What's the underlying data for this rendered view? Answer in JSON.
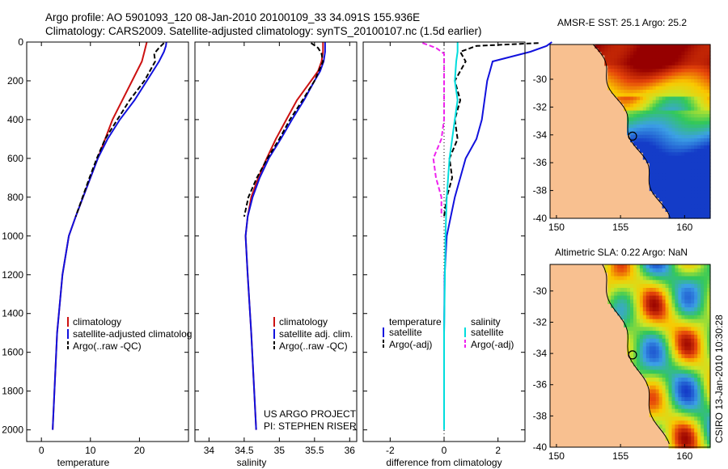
{
  "figure": {
    "title_line1": "Argo profile: AO 5901093_120 08-Jan-2010 20100109_33 34.091S 155.936E",
    "title_line2": "Climatology: CARS2009. Satellite-adjusted climatology: synTS_20100107.nc (1.5d earlier)",
    "credit_line1": "US ARGO PROJECT",
    "credit_line2": "PI: STEPHEN RISER",
    "stamp": "CSIRO 13-Jan-2010 10:30:28"
  },
  "colors": {
    "climatology": "#cc1111",
    "satellite": "#1111dd",
    "argo": "#000000",
    "salinity_sat": "#00dddd",
    "salinity_argo": "#ee22ee",
    "land": "#f8c090"
  },
  "chart_data": [
    {
      "type": "line",
      "id": "temperature",
      "xlabel": "temperature",
      "ylabel": "",
      "xlim": [
        -3,
        30
      ],
      "ylim": [
        2060,
        0
      ],
      "xticks": [
        0,
        10,
        20
      ],
      "xtick_labels": [
        "0",
        "10",
        "20"
      ],
      "yticks": [
        0,
        200,
        400,
        600,
        800,
        1000,
        1200,
        1400,
        1600,
        1800,
        2000
      ],
      "ytick_labels": [
        "0",
        "200",
        "400",
        "600",
        "800",
        "1000",
        "1200",
        "1400",
        "1600",
        "1800",
        "2000"
      ],
      "legend": [
        "climatology",
        "satellite-adjusted climatolog",
        "Argo(..raw -QC)"
      ],
      "series": [
        {
          "name": "climatology",
          "color": "#cc1111",
          "dash": "",
          "depth": [
            0,
            50,
            100,
            200,
            300,
            400,
            500,
            600,
            700,
            800,
            900,
            1000,
            1200,
            1500,
            2000
          ],
          "values": [
            21.5,
            21,
            20.5,
            18.5,
            16.5,
            14.5,
            13,
            11.5,
            10,
            8.5,
            7,
            5.6,
            4.3,
            3.2,
            2.3
          ]
        },
        {
          "name": "satellite-adjusted climatology",
          "color": "#1111dd",
          "dash": "",
          "depth": [
            0,
            20,
            50,
            100,
            200,
            300,
            400,
            500,
            600,
            700,
            800,
            900,
            1000,
            1200,
            1500,
            2000
          ],
          "values": [
            25.5,
            25.4,
            25,
            24,
            21.5,
            19,
            16,
            13.5,
            11.5,
            10,
            8.5,
            7,
            5.6,
            4.3,
            3.2,
            2.3
          ]
        },
        {
          "name": "Argo(..raw -QC)",
          "color": "#000000",
          "dash": "6,3",
          "depth": [
            5,
            30,
            60,
            100,
            200,
            300,
            400,
            500,
            600,
            700,
            800,
            900
          ],
          "values": [
            25,
            24,
            23,
            23.2,
            21,
            18,
            15.5,
            13,
            11.3,
            9.8,
            8.4,
            7
          ]
        }
      ]
    },
    {
      "type": "line",
      "id": "salinity",
      "xlabel": "salinity",
      "ylabel": "",
      "xlim": [
        33.8,
        36.1
      ],
      "ylim": [
        2060,
        0
      ],
      "xticks": [
        34,
        34.5,
        35,
        35.5,
        36
      ],
      "xtick_labels": [
        "34",
        "34.5",
        "35",
        "35.5",
        "36"
      ],
      "yticks": [
        0,
        200,
        400,
        600,
        800,
        1000,
        1200,
        1400,
        1600,
        1800,
        2000
      ],
      "ytick_labels": [],
      "legend": [
        "climatology",
        "satellite adj. clim.",
        "Argo(..raw -QC)"
      ],
      "series": [
        {
          "name": "climatology",
          "color": "#cc1111",
          "dash": "",
          "depth": [
            0,
            50,
            100,
            150,
            200,
            300,
            400,
            500,
            600,
            700,
            800,
            900,
            1000,
            1200,
            1500,
            2000
          ],
          "values": [
            35.62,
            35.62,
            35.6,
            35.55,
            35.45,
            35.25,
            35.1,
            34.95,
            34.82,
            34.7,
            34.6,
            34.55,
            34.52,
            34.55,
            34.6,
            34.67
          ]
        },
        {
          "name": "satellite adj. clim.",
          "color": "#1111dd",
          "dash": "",
          "depth": [
            0,
            50,
            100,
            150,
            200,
            300,
            400,
            500,
            600,
            700,
            800,
            900,
            1000,
            1200,
            1500,
            2000
          ],
          "values": [
            35.65,
            35.65,
            35.63,
            35.58,
            35.5,
            35.35,
            35.18,
            35.02,
            34.85,
            34.72,
            34.62,
            34.55,
            34.52,
            34.55,
            34.6,
            34.67
          ]
        },
        {
          "name": "Argo(..raw -QC)",
          "color": "#000000",
          "dash": "6,3",
          "depth": [
            5,
            30,
            60,
            100,
            200,
            300,
            400,
            500,
            600,
            700,
            800,
            900
          ],
          "values": [
            35.45,
            35.55,
            35.6,
            35.62,
            35.5,
            35.33,
            35.15,
            35.0,
            34.83,
            34.68,
            34.56,
            34.5
          ]
        }
      ]
    },
    {
      "type": "line",
      "id": "difference",
      "xlabel": "difference from climatology",
      "ylabel": "",
      "xlim": [
        -3,
        3
      ],
      "ylim": [
        2060,
        0
      ],
      "xticks": [
        -2,
        0,
        2
      ],
      "xtick_labels": [
        "-2",
        "0",
        "2"
      ],
      "yticks": [
        0,
        200,
        400,
        600,
        800,
        1000,
        1200,
        1400,
        1600,
        1800,
        2000
      ],
      "ytick_labels": [],
      "legend_headers": [
        "temperature",
        "salinity"
      ],
      "legend": [
        "satellite",
        "Argo(-adj)",
        "satellite",
        "Argo(-adj)"
      ],
      "series": [
        {
          "name": "temperature satellite",
          "color": "#1111dd",
          "dash": "",
          "depth": [
            0,
            20,
            50,
            100,
            150,
            200,
            300,
            400,
            500,
            600,
            700,
            800,
            1000,
            1200,
            1500,
            2000
          ],
          "values": [
            4,
            3.8,
            3.2,
            1.8,
            1.7,
            1.6,
            1.5,
            1.4,
            1.2,
            0.8,
            0.6,
            0.4,
            0.1,
            0.02,
            0.0,
            0.0
          ]
        },
        {
          "name": "temperature Argo(-adj)",
          "color": "#000000",
          "dash": "6,3",
          "depth": [
            5,
            20,
            50,
            100,
            200,
            300,
            400,
            500,
            600,
            700,
            800,
            900
          ],
          "values": [
            3.5,
            1.2,
            0.6,
            0.8,
            0.4,
            0.6,
            0.4,
            0.5,
            0.2,
            0.3,
            0.1,
            0.0
          ]
        },
        {
          "name": "salinity satellite",
          "color": "#00dddd",
          "dash": "",
          "depth": [
            0,
            50,
            100,
            200,
            300,
            400,
            500,
            600,
            800,
            1000,
            1500,
            2000
          ],
          "values": [
            0.5,
            0.5,
            0.45,
            0.4,
            0.5,
            0.4,
            0.3,
            0.2,
            0.1,
            0.05,
            0.0,
            0.0
          ]
        },
        {
          "name": "salinity Argo(-adj)",
          "color": "#ee22ee",
          "dash": "6,3",
          "depth": [
            5,
            30,
            60,
            100,
            200,
            300,
            400,
            500,
            600,
            700,
            800,
            900
          ],
          "values": [
            -0.8,
            -0.3,
            0.0,
            0.0,
            0.0,
            0.0,
            0.0,
            -0.1,
            -0.4,
            -0.3,
            -0.1,
            -0.1
          ]
        }
      ]
    },
    {
      "type": "heatmap",
      "id": "sst_map",
      "title": "AMSR-E SST: 25.1 Argo: 25.2",
      "xlim": [
        149.5,
        162
      ],
      "ylim": [
        -40,
        -27.5
      ],
      "xticks": [
        150,
        155,
        160
      ],
      "xtick_labels": [
        "150",
        "155",
        "160"
      ],
      "yticks": [
        -30,
        -32,
        -34,
        -36,
        -38,
        -40
      ],
      "ytick_labels": [
        "-30",
        "-32",
        "-34",
        "-36",
        "-38",
        "-40"
      ],
      "argo_marker": {
        "lon": 155.936,
        "lat": -34.091
      }
    },
    {
      "type": "heatmap",
      "id": "sla_map",
      "title": "Altimetric SLA: 0.22 Argo: NaN",
      "xlim": [
        149.5,
        162
      ],
      "ylim": [
        -40,
        -28.3
      ],
      "xticks": [
        150,
        155,
        160
      ],
      "xtick_labels": [
        "150",
        "155",
        "160"
      ],
      "yticks": [
        -30,
        -32,
        -34,
        -36,
        -38,
        -40
      ],
      "ytick_labels": [
        "-30",
        "-32",
        "-34",
        "-36",
        "-38",
        "-40"
      ],
      "argo_marker": {
        "lon": 155.936,
        "lat": -34.091
      }
    }
  ]
}
